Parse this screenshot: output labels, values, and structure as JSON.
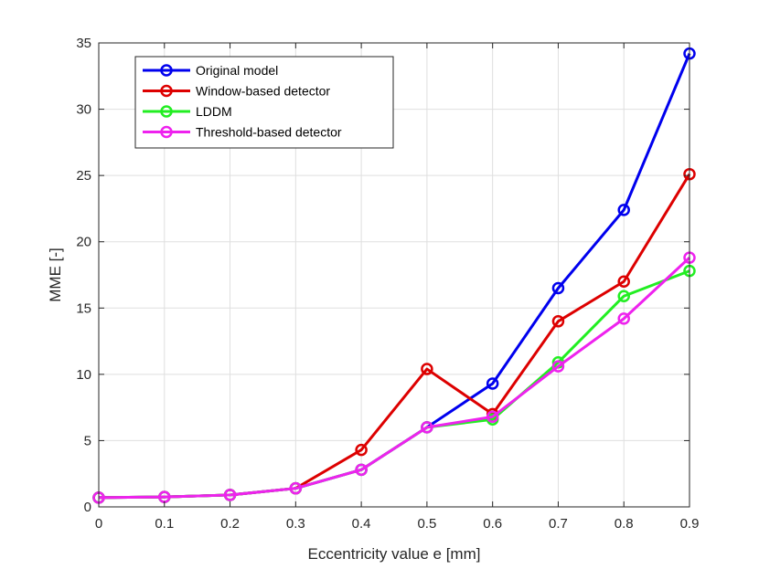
{
  "chart_data": {
    "type": "line",
    "title": "",
    "xlabel": "Eccentricity value e [mm]",
    "ylabel": "MME [-]",
    "xlim": [
      0,
      0.9
    ],
    "ylim": [
      0,
      35
    ],
    "xticks": [
      0,
      0.1,
      0.2,
      0.3,
      0.4,
      0.5,
      0.6,
      0.7,
      0.8,
      0.9
    ],
    "yticks": [
      0,
      5,
      10,
      15,
      20,
      25,
      30,
      35
    ],
    "xtick_labels": [
      "0",
      "0.1",
      "0.2",
      "0.3",
      "0.4",
      "0.5",
      "0.6",
      "0.7",
      "0.8",
      "0.9"
    ],
    "ytick_labels": [
      "0",
      "5",
      "10",
      "15",
      "20",
      "25",
      "30",
      "35"
    ],
    "grid": true,
    "legend_position": "top-left",
    "x": [
      0,
      0.1,
      0.2,
      0.3,
      0.4,
      0.5,
      0.6,
      0.7,
      0.8,
      0.9
    ],
    "series": [
      {
        "name": "Original model",
        "color": "#0000ee",
        "marker": "circle",
        "values": [
          0.7,
          0.75,
          0.9,
          1.4,
          2.8,
          6.0,
          9.3,
          16.5,
          22.4,
          34.2
        ]
      },
      {
        "name": "Window-based detector",
        "color": "#dd0000",
        "marker": "circle",
        "values": [
          0.7,
          0.75,
          0.9,
          1.4,
          4.3,
          10.4,
          7.0,
          14.0,
          17.0,
          25.1
        ]
      },
      {
        "name": "LDDM",
        "color": "#22ee22",
        "marker": "circle",
        "values": [
          0.7,
          0.75,
          0.9,
          1.4,
          2.8,
          6.0,
          6.6,
          10.9,
          15.9,
          17.8
        ]
      },
      {
        "name": "Threshold-based detector",
        "color": "#ee22ee",
        "marker": "circle",
        "values": [
          0.7,
          0.75,
          0.9,
          1.4,
          2.8,
          6.0,
          6.8,
          10.6,
          14.2,
          18.8
        ]
      }
    ]
  }
}
